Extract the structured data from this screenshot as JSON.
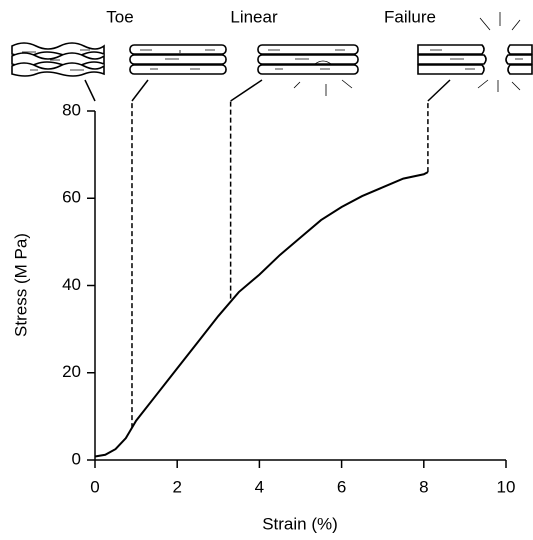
{
  "chart_data": {
    "type": "line",
    "x_label": "Strain (%)",
    "y_label": "Stress (M Pa)",
    "x": [
      0,
      0.25,
      0.5,
      0.75,
      1,
      1.5,
      2,
      2.5,
      3,
      3.5,
      4,
      4.5,
      5,
      5.5,
      6,
      6.5,
      7,
      7.5,
      8,
      8.1
    ],
    "values": [
      0.8,
      1.2,
      2.5,
      5,
      9,
      15,
      21,
      27,
      33,
      38.5,
      42.5,
      47,
      51,
      55,
      58,
      60.5,
      62.5,
      64.5,
      65.5,
      66
    ],
    "color": "#000000",
    "xlim": [
      0,
      10
    ],
    "xticks": [
      0,
      2,
      4,
      6,
      8,
      10
    ],
    "ylim": [
      0,
      80
    ],
    "yticks": [
      0,
      20,
      40,
      60,
      80
    ],
    "regions": [
      {
        "label": "Toe",
        "x": 0.9,
        "y": 7.3
      },
      {
        "label": "Linear",
        "x": 3.3,
        "y": 37
      },
      {
        "label": "Failure",
        "x": 8.1,
        "y": 66
      }
    ]
  }
}
